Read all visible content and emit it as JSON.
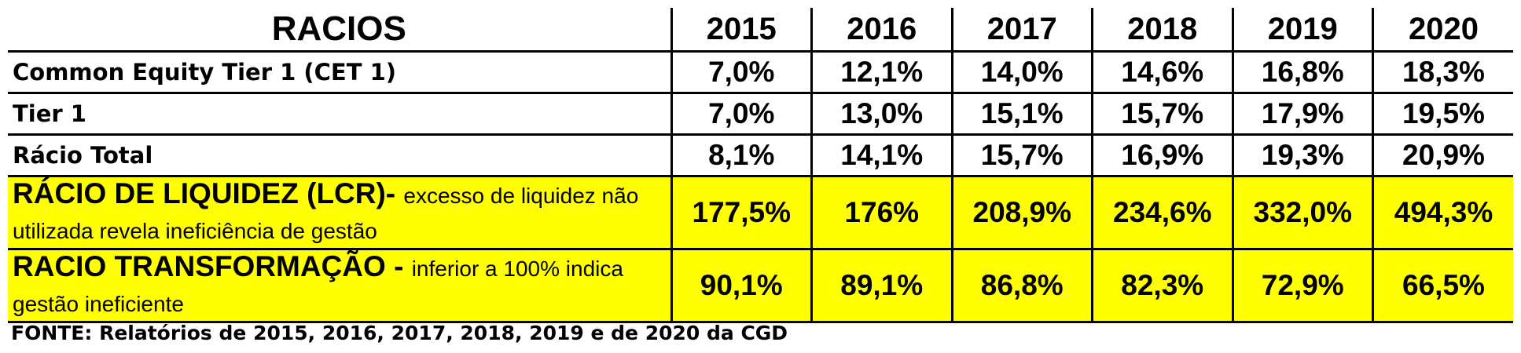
{
  "table": {
    "header": [
      "RACIOS",
      "2015",
      "2016",
      "2017",
      "2018",
      "2019",
      "2020"
    ],
    "rows": [
      {
        "label": "Common Equity Tier 1 (CET 1)",
        "cells": [
          "7,0%",
          "12,1%",
          "14,0%",
          "14,6%",
          "16,8%",
          "18,3%"
        ]
      },
      {
        "label": "Tier 1",
        "cells": [
          "7,0%",
          "13,0%",
          "15,1%",
          "15,7%",
          "17,9%",
          "19,5%"
        ]
      },
      {
        "label": "Rácio Total",
        "cells": [
          "8,1%",
          "14,1%",
          "15,7%",
          "16,9%",
          "19,3%",
          "20,9%"
        ]
      },
      {
        "label": "RÁCIO DE LIQUIDEZ (LCR)-",
        "note": "excesso de liquidez não utilizada revela ineficiência de gestão",
        "cells": [
          "177,5%",
          "176%",
          "208,9%",
          "234,6%",
          "332,0%",
          "494,3%"
        ]
      },
      {
        "label": "RACIO TRANSFORMAÇÃO -",
        "note": "inferior a 100% indica gestão ineficiente",
        "cells": [
          "90,1%",
          "89,1%",
          "86,8%",
          "82,3%",
          "72,9%",
          "66,5%"
        ]
      }
    ]
  },
  "footer": "FONTE: Relatórios de 2015, 2016, 2017, 2018, 2019 e de 2020 da CGD"
}
